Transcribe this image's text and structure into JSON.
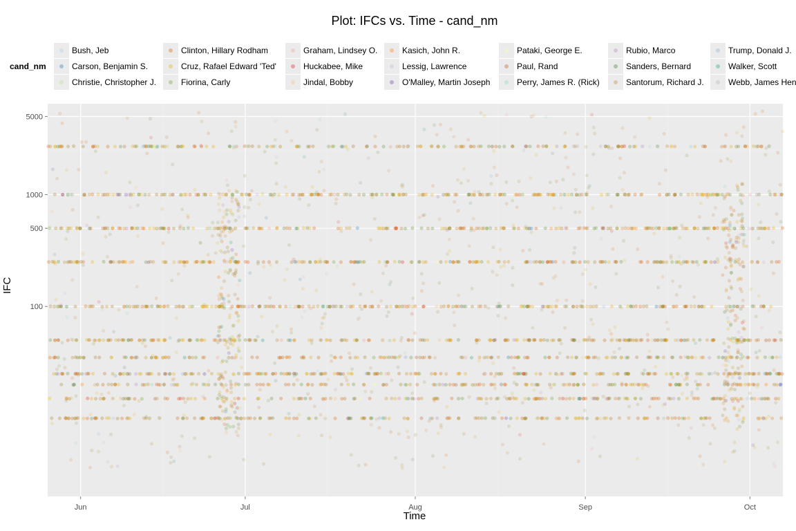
{
  "chart_data": {
    "type": "scatter",
    "title": "Plot: IFCs vs. Time - cand_nm",
    "xlabel": "Time",
    "ylabel": "IFC",
    "y_scale": "log",
    "x_ticks": [
      "Jun",
      "Jul",
      "Aug",
      "Sep",
      "Oct"
    ],
    "x_tick_dates": [
      "2015-06-01",
      "2015-07-01",
      "2015-08-01",
      "2015-09-01",
      "2015-10-01"
    ],
    "xlim": [
      "2015-05-26",
      "2015-10-07"
    ],
    "y_ticks": [
      100,
      500,
      1000,
      5000
    ],
    "ylim": [
      2,
      6500
    ],
    "grid": true,
    "legend_title": "cand_nm",
    "legend_position": "top",
    "point_alpha": 0.15,
    "series": [
      {
        "name": "Bush, Jeb",
        "color": "#a6cee3"
      },
      {
        "name": "Carson, Benjamin S.",
        "color": "#1f78b4"
      },
      {
        "name": "Christie, Christopher J.",
        "color": "#b2df8a"
      },
      {
        "name": "Clinton, Hillary Rodham",
        "color": "#d95f02"
      },
      {
        "name": "Cruz, Rafael Edward 'Ted'",
        "color": "#e6ab02"
      },
      {
        "name": "Fiorina, Carly",
        "color": "#66a61e"
      },
      {
        "name": "Graham, Lindsey O.",
        "color": "#fb9a99"
      },
      {
        "name": "Huckabee, Mike",
        "color": "#e31a1c"
      },
      {
        "name": "Jindal, Bobby",
        "color": "#fdbf6f"
      },
      {
        "name": "Kasich, John R.",
        "color": "#ff7f00"
      },
      {
        "name": "Lessig, Lawrence",
        "color": "#cab2d6"
      },
      {
        "name": "O'Malley, Martin Joseph",
        "color": "#6a3d9a"
      },
      {
        "name": "Pataki, George E.",
        "color": "#ffff99"
      },
      {
        "name": "Paul, Rand",
        "color": "#b15928"
      },
      {
        "name": "Perry, James R. (Rick)",
        "color": "#8dd3c7"
      },
      {
        "name": "Rubio, Marco",
        "color": "#bc80bd"
      },
      {
        "name": "Sanders, Bernard",
        "color": "#2e7d32"
      },
      {
        "name": "Santorum, Richard J.",
        "color": "#bf812d"
      },
      {
        "name": "Trump, Donald J.",
        "color": "#80b1d3"
      },
      {
        "name": "Walker, Scott",
        "color": "#1b9e77"
      },
      {
        "name": "Webb, James Henry",
        "color": "#b3b3b3"
      }
    ],
    "dense_levels": [
      10,
      15,
      20,
      25,
      35,
      50,
      100,
      250,
      500,
      1000,
      2700
    ],
    "dominant_colors": [
      "#d95f02",
      "#c98a1b",
      "#a6761d",
      "#5f8a2e",
      "#e6ab02"
    ]
  }
}
